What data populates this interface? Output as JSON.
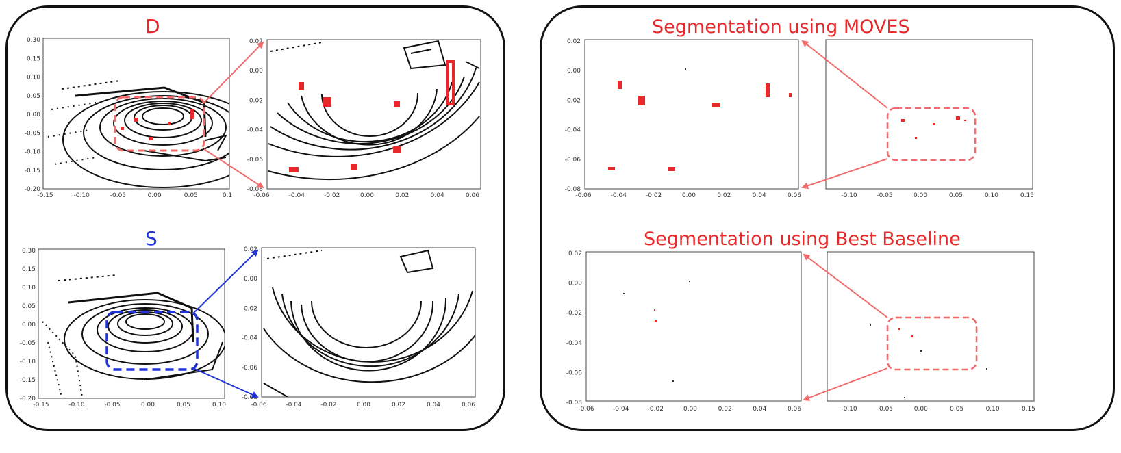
{
  "colors": {
    "red": "#e8292b",
    "blue": "#2235d6",
    "pink": "#f26b6b",
    "black": "#111111"
  },
  "left_panel": {
    "label_top": "D",
    "label_bottom": "S",
    "overview_xticks": [
      "-0.15",
      "-0.10",
      "-0.05",
      "0.00",
      "0.05",
      "0.1"
    ],
    "overview_xticks_bottom": [
      "-0.15",
      "-0.10",
      "-0.05",
      "0.00",
      "0.05",
      "0.10"
    ],
    "overview_yticks": [
      "0.30",
      "0.15",
      "0.10",
      "0.05",
      "0.00",
      "-0.05",
      "-0.10",
      "-0.15",
      "-0.20"
    ],
    "zoom_xticks": [
      "-0.06",
      "-0.04",
      "-0.02",
      "0.00",
      "0.02",
      "0.04",
      "0.06"
    ],
    "zoom_yticks": [
      "0.02",
      "0.00",
      "-0.02",
      "-0.04",
      "-0.06",
      "-0.08"
    ]
  },
  "right_panel": {
    "title_top": "Segmentation using MOVES",
    "title_bottom": "Segmentation using Best Baseline",
    "zoom_xticks": [
      "-0.06",
      "-0.04",
      "-0.02",
      "0.00",
      "0.02",
      "0.04",
      "0.06"
    ],
    "zoom_yticks": [
      "0.02",
      "0.00",
      "-0.02",
      "-0.04",
      "-0.06",
      "-0.08"
    ],
    "full_xticks": [
      "-0.10",
      "-0.05",
      "0.00",
      "0.05",
      "0.10",
      "0.15"
    ]
  }
}
